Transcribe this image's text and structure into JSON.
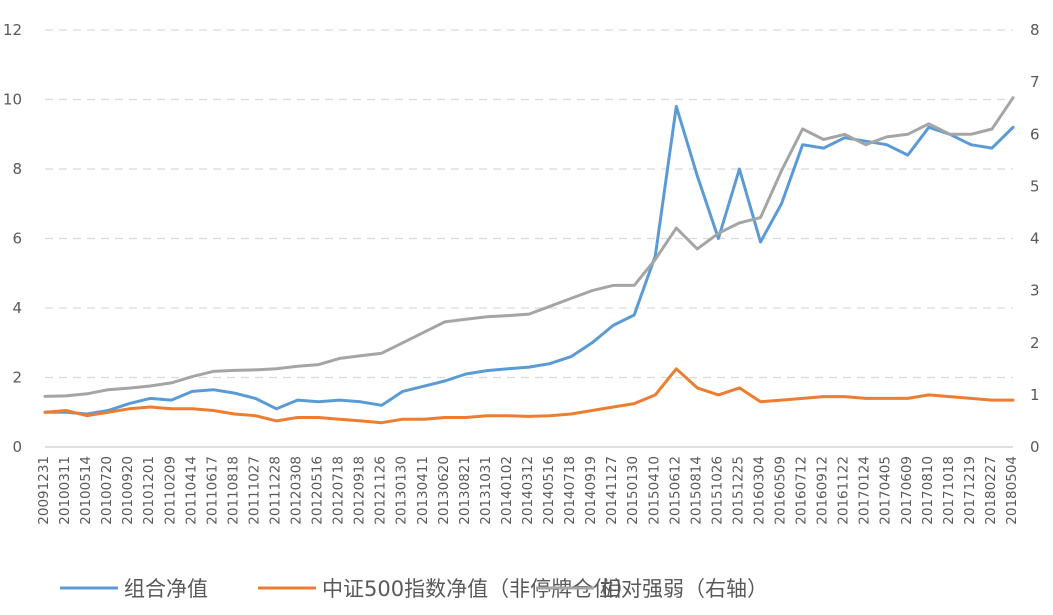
{
  "chart_data": {
    "type": "line",
    "y_left": {
      "min": 0,
      "max": 12,
      "ticks": [
        "0",
        "2",
        "4",
        "6",
        "8",
        "10",
        "12"
      ]
    },
    "y_right": {
      "min": 0,
      "max": 8,
      "ticks": [
        "0",
        "1",
        "2",
        "3",
        "4",
        "5",
        "6",
        "7",
        "8"
      ]
    },
    "grid": true,
    "legend_position": "bottom",
    "x_tick_labels": [
      "20091231",
      "20100311",
      "20100514",
      "20100720",
      "20100920",
      "20101201",
      "20110209",
      "20110414",
      "20110617",
      "20110818",
      "20111027",
      "20111228",
      "20120308",
      "20120516",
      "20120718",
      "20120918",
      "20121126",
      "20130130",
      "20130411",
      "20130620",
      "20130821",
      "20131031",
      "20140102",
      "20140312",
      "20140516",
      "20140718",
      "20140919",
      "20141127",
      "20150130",
      "20150410",
      "20150612",
      "20150814",
      "20151026",
      "20151225",
      "20160304",
      "20160509",
      "20160712",
      "20160912",
      "20161122",
      "20170124",
      "20170405",
      "20170609",
      "20170810",
      "20171018",
      "20171219",
      "20180227",
      "20180504"
    ],
    "series": [
      {
        "name": "组合净值",
        "axis": "left",
        "color": "#5B9BD5",
        "values": [
          1.0,
          1.0,
          0.95,
          1.05,
          1.25,
          1.4,
          1.35,
          1.6,
          1.65,
          1.55,
          1.4,
          1.1,
          1.35,
          1.3,
          1.35,
          1.3,
          1.2,
          1.6,
          1.75,
          1.9,
          2.1,
          2.2,
          2.25,
          2.3,
          2.4,
          2.6,
          3.0,
          3.5,
          3.8,
          5.5,
          9.8,
          7.8,
          6.0,
          8.0,
          5.9,
          7.0,
          8.7,
          8.6,
          8.9,
          8.8,
          8.7,
          8.4,
          9.2,
          9.0,
          8.7,
          8.6,
          9.2
        ]
      },
      {
        "name": "中证500指数净值（非停牌仓位）",
        "axis": "left",
        "color": "#ED7D31",
        "values": [
          1.0,
          1.05,
          0.9,
          1.0,
          1.1,
          1.15,
          1.1,
          1.1,
          1.05,
          0.95,
          0.9,
          0.75,
          0.85,
          0.85,
          0.8,
          0.75,
          0.7,
          0.8,
          0.8,
          0.85,
          0.85,
          0.9,
          0.9,
          0.88,
          0.9,
          0.95,
          1.05,
          1.15,
          1.25,
          1.5,
          2.25,
          1.7,
          1.5,
          1.7,
          1.3,
          1.35,
          1.4,
          1.45,
          1.45,
          1.4,
          1.4,
          1.4,
          1.5,
          1.45,
          1.4,
          1.35,
          1.35
        ]
      },
      {
        "name": "相对强弱（右轴）",
        "axis": "right",
        "color": "#A5A5A5",
        "values": [
          0.97,
          0.98,
          1.02,
          1.1,
          1.13,
          1.17,
          1.23,
          1.35,
          1.45,
          1.47,
          1.48,
          1.5,
          1.55,
          1.58,
          1.7,
          1.75,
          1.8,
          2.0,
          2.2,
          2.4,
          2.45,
          2.5,
          2.52,
          2.55,
          2.7,
          2.85,
          3.0,
          3.1,
          3.1,
          3.6,
          4.2,
          3.8,
          4.1,
          4.3,
          4.4,
          5.3,
          6.1,
          5.9,
          6.0,
          5.8,
          5.95,
          6.0,
          6.2,
          6.0,
          6.0,
          6.1,
          6.7
        ]
      }
    ]
  }
}
